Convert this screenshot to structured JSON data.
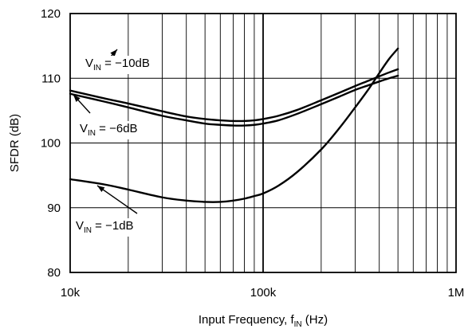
{
  "chart_data": {
    "type": "line",
    "xlabel": {
      "prefix": "Input Frequency, f",
      "sub": "IN",
      "suffix": " (Hz)"
    },
    "ylabel": "SFDR (dB)",
    "x_scale": "log",
    "xlim": [
      10000,
      1000000
    ],
    "ylim": [
      80,
      120
    ],
    "grid": true,
    "x_ticks": [
      {
        "value": 10000,
        "label": "10k"
      },
      {
        "value": 100000,
        "label": "100k"
      },
      {
        "value": 1000000,
        "label": "1M"
      }
    ],
    "y_ticks": [
      {
        "value": 80,
        "label": "80"
      },
      {
        "value": 90,
        "label": "90"
      },
      {
        "value": 100,
        "label": "100"
      },
      {
        "value": 110,
        "label": "110"
      },
      {
        "value": 120,
        "label": "120"
      }
    ],
    "series": [
      {
        "name": {
          "prefix": "V",
          "sub": "IN",
          "suffix": " = −10dB"
        },
        "x": [
          10000,
          15000,
          20000,
          30000,
          40000,
          50000,
          60000,
          70000,
          80000,
          90000,
          100000,
          120000,
          150000,
          200000,
          250000,
          300000,
          350000,
          400000,
          450000,
          500000
        ],
        "y": [
          108.1,
          106.9,
          106.1,
          104.9,
          104.1,
          103.7,
          103.5,
          103.4,
          103.4,
          103.5,
          103.7,
          104.2,
          105.1,
          106.6,
          107.8,
          108.8,
          109.6,
          110.3,
          110.9,
          111.4
        ]
      },
      {
        "name": {
          "prefix": "V",
          "sub": "IN",
          "suffix": " = −6dB"
        },
        "x": [
          10000,
          15000,
          20000,
          30000,
          40000,
          50000,
          60000,
          70000,
          80000,
          90000,
          100000,
          120000,
          150000,
          200000,
          250000,
          300000,
          350000,
          400000,
          450000,
          500000
        ],
        "y": [
          107.6,
          106.4,
          105.5,
          104.2,
          103.5,
          103.0,
          102.8,
          102.7,
          102.7,
          102.8,
          103.0,
          103.5,
          104.5,
          106.0,
          107.2,
          108.2,
          108.9,
          109.5,
          110.0,
          110.4
        ]
      },
      {
        "name": {
          "prefix": "V",
          "sub": "IN",
          "suffix": " = −1dB"
        },
        "x": [
          10000,
          15000,
          20000,
          30000,
          40000,
          50000,
          60000,
          70000,
          80000,
          90000,
          100000,
          120000,
          150000,
          200000,
          250000,
          300000,
          350000,
          400000,
          450000,
          500000
        ],
        "y": [
          94.4,
          93.6,
          92.8,
          91.6,
          91.1,
          90.9,
          90.9,
          91.1,
          91.4,
          91.8,
          92.2,
          93.4,
          95.5,
          99.0,
          102.4,
          105.5,
          108.2,
          110.8,
          113.0,
          114.6
        ]
      }
    ]
  }
}
